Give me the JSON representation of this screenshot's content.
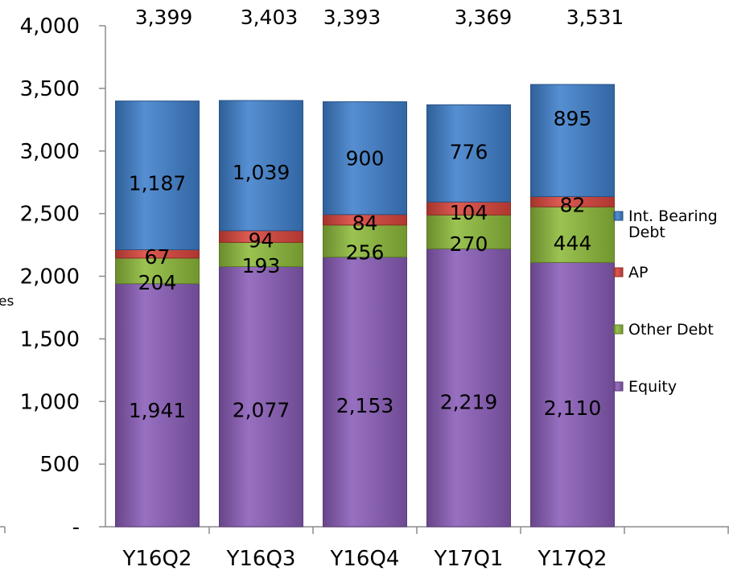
{
  "chart_data": {
    "type": "bar",
    "stacked": true,
    "categories": [
      "Y16Q2",
      "Y16Q3",
      "Y16Q4",
      "Y17Q1",
      "Y17Q2"
    ],
    "series": [
      {
        "name": "Equity",
        "values": [
          1941,
          2077,
          2153,
          2219,
          2110
        ],
        "color": "#8a5cb8"
      },
      {
        "name": "Other Debt",
        "values": [
          204,
          193,
          256,
          270,
          444
        ],
        "color": "#8dbb3a"
      },
      {
        "name": "AP",
        "values": [
          67,
          94,
          84,
          104,
          82
        ],
        "color": "#d9453c"
      },
      {
        "name": "Int. Bearing Debt",
        "values": [
          1187,
          1039,
          900,
          776,
          895
        ],
        "color": "#3f80cc"
      }
    ],
    "totals": [
      3399,
      3403,
      3393,
      3369,
      3531
    ],
    "total_labels": [
      "3,399",
      "3,403",
      "3,393",
      "3,369",
      "3,531"
    ],
    "segment_labels": [
      [
        "1,941",
        "2,077",
        "2,153",
        "2,219",
        "2,110"
      ],
      [
        "204",
        "193",
        "256",
        "270",
        "444"
      ],
      [
        "67",
        "94",
        "84",
        "104",
        "82"
      ],
      [
        "1,187",
        "1,039",
        "900",
        "776",
        "895"
      ]
    ],
    "y_ticks": [
      0,
      500,
      1000,
      1500,
      2000,
      2500,
      3000,
      3500,
      4000
    ],
    "y_tick_labels": [
      "-",
      "500",
      "1,000",
      "1,500",
      "2,000",
      "2,500",
      "3,000",
      "3,500",
      "4,000"
    ],
    "ylim": [
      0,
      4000
    ],
    "ylabel_fragment": "es",
    "legend": {
      "position": "right",
      "order": [
        "Int. Bearing Debt",
        "AP",
        "Other Debt",
        "Equity"
      ],
      "entries": [
        {
          "series": "Int. Bearing Debt",
          "lines": [
            "Int. Bearing",
            "Debt"
          ]
        },
        {
          "series": "AP",
          "lines": [
            "AP"
          ]
        },
        {
          "series": "Other Debt",
          "lines": [
            "Other Debt"
          ]
        },
        {
          "series": "Equity",
          "lines": [
            "Equity"
          ]
        }
      ]
    },
    "grid": false
  }
}
